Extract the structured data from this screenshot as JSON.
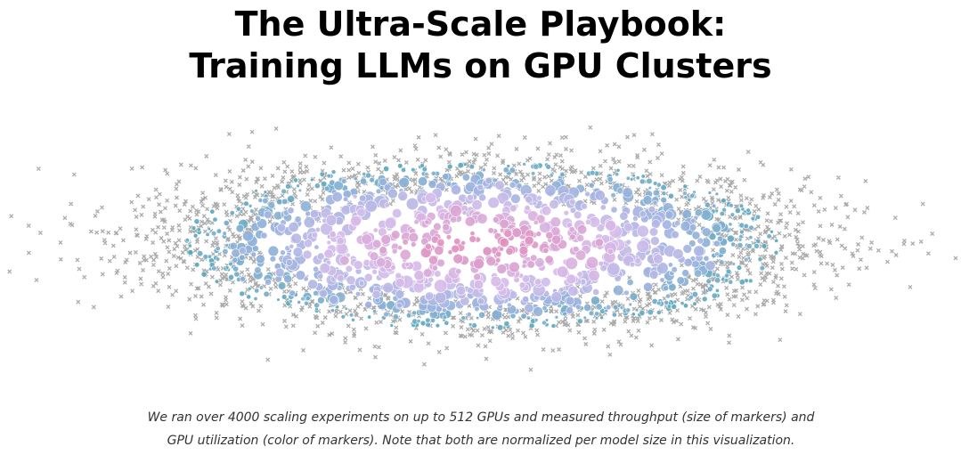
{
  "header": {
    "title_line1": "The Ultra-Scale Playbook:",
    "title_line2": "Training LLMs on GPU Clusters"
  },
  "caption": "We ran over 4000 scaling experiments on up to 512 GPUs and measured throughput (size of markers) and GPU utilization (color of markers). Note that both are normalized per model size in this visualization."
}
